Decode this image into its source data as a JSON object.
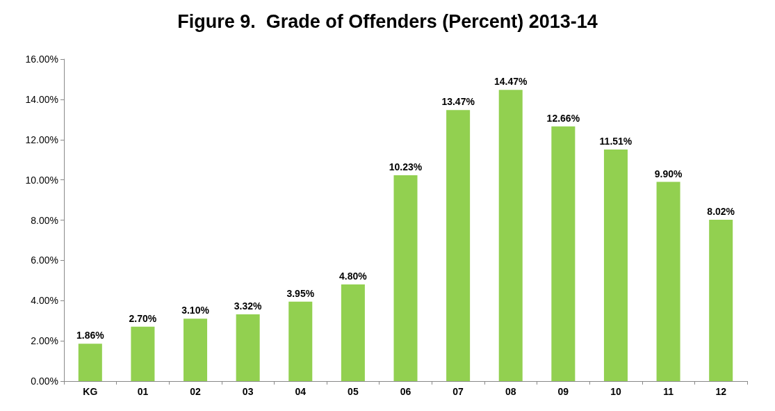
{
  "chart_data": {
    "type": "bar",
    "title": "Figure 9.  Grade of Offenders (Percent) 2013-14",
    "categories": [
      "KG",
      "01",
      "02",
      "03",
      "04",
      "05",
      "06",
      "07",
      "08",
      "09",
      "10",
      "11",
      "12"
    ],
    "values": [
      1.86,
      2.7,
      3.1,
      3.32,
      3.95,
      4.8,
      10.23,
      13.47,
      14.47,
      12.66,
      11.51,
      9.9,
      8.02
    ],
    "value_labels": [
      "1.86%",
      "2.70%",
      "3.10%",
      "3.32%",
      "3.95%",
      "4.80%",
      "10.23%",
      "13.47%",
      "14.47%",
      "12.66%",
      "11.51%",
      "9.90%",
      "8.02%"
    ],
    "color": "#92d050",
    "ylim": [
      0,
      16
    ],
    "yticks": [
      {
        "value": 0,
        "label": "0.00%"
      },
      {
        "value": 2,
        "label": "2.00%"
      },
      {
        "value": 4,
        "label": "4.00%"
      },
      {
        "value": 6,
        "label": "6.00%"
      },
      {
        "value": 8,
        "label": "8.00%"
      },
      {
        "value": 10,
        "label": "10.00%"
      },
      {
        "value": 12,
        "label": "12.00%"
      },
      {
        "value": 14,
        "label": "14.00%"
      },
      {
        "value": 16,
        "label": "16.00%"
      }
    ],
    "grid": false
  }
}
